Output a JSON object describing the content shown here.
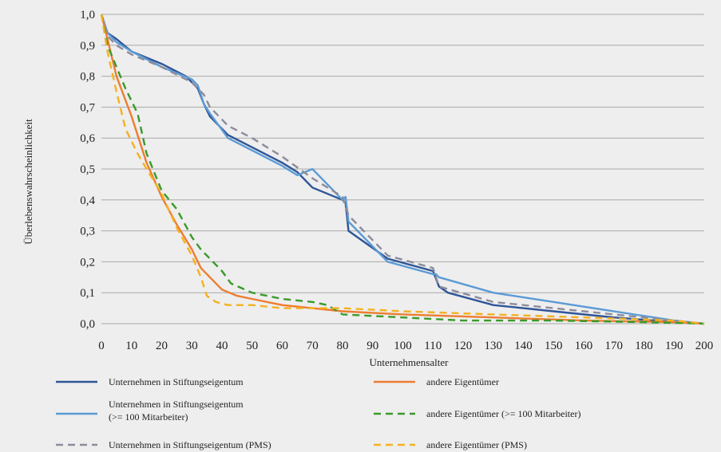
{
  "chart_data": {
    "type": "line",
    "title": "",
    "xlabel": "Unternehmensalter",
    "ylabel": "Überlebenswahrscheinlichkeit",
    "xlim": [
      0,
      200
    ],
    "ylim": [
      0,
      1
    ],
    "x_ticks": [
      0,
      10,
      20,
      30,
      40,
      50,
      60,
      70,
      80,
      90,
      100,
      110,
      120,
      130,
      140,
      150,
      160,
      170,
      180,
      190,
      200
    ],
    "x_tick_labels": [
      "0",
      "10",
      "20",
      "30",
      "40",
      "50",
      "60",
      "70",
      "80",
      "90",
      "100",
      "110",
      "120",
      "130",
      "140",
      "150",
      "160",
      "170",
      "180",
      "190",
      "200"
    ],
    "y_ticks": [
      0,
      0.1,
      0.2,
      0.3,
      0.4,
      0.5,
      0.6,
      0.7,
      0.8,
      0.9,
      1.0
    ],
    "y_tick_labels": [
      "0,0",
      "0,1",
      "0,2",
      "0,3",
      "0,4",
      "0,5",
      "0,6",
      "0,7",
      "0,8",
      "0,9",
      "1,0"
    ],
    "grid": "horizontal",
    "legend_position": "bottom",
    "series": [
      {
        "name": "Unternehmen in Stiftungseigentum",
        "color": "#2f5597",
        "dash": "solid",
        "x": [
          0,
          2,
          5,
          10,
          20,
          28,
          32,
          34,
          36,
          42,
          50,
          60,
          65,
          70,
          80,
          81,
          82,
          95,
          110,
          112,
          115,
          130,
          150,
          170,
          190,
          200
        ],
        "y": [
          1.0,
          0.94,
          0.92,
          0.88,
          0.84,
          0.8,
          0.76,
          0.71,
          0.67,
          0.61,
          0.57,
          0.52,
          0.49,
          0.44,
          0.4,
          0.39,
          0.3,
          0.21,
          0.17,
          0.12,
          0.1,
          0.06,
          0.04,
          0.02,
          0.005,
          0.0
        ]
      },
      {
        "name": "Unternehmen in Stiftungseigentum (>= 100 Mitarbeiter)",
        "color": "#5b9bd5",
        "dash": "solid",
        "x": [
          0,
          2,
          5,
          10,
          20,
          30,
          32,
          34,
          36,
          42,
          50,
          60,
          65,
          70,
          80,
          81,
          82,
          95,
          110,
          111,
          112,
          130,
          150,
          170,
          190,
          200
        ],
        "y": [
          1.0,
          0.94,
          0.91,
          0.88,
          0.83,
          0.79,
          0.77,
          0.71,
          0.68,
          0.6,
          0.56,
          0.51,
          0.48,
          0.5,
          0.4,
          0.41,
          0.33,
          0.2,
          0.16,
          0.16,
          0.15,
          0.1,
          0.07,
          0.04,
          0.01,
          0.0
        ]
      },
      {
        "name": "Unternehmen in Stiftungseigentum (PMS)",
        "color": "#8c8c9c",
        "dash": "dashed",
        "x": [
          0,
          2,
          5,
          10,
          20,
          30,
          34,
          36,
          42,
          50,
          60,
          70,
          80,
          82,
          95,
          110,
          112,
          130,
          150,
          170,
          190,
          200
        ],
        "y": [
          1.0,
          0.93,
          0.9,
          0.87,
          0.83,
          0.78,
          0.74,
          0.7,
          0.64,
          0.6,
          0.54,
          0.47,
          0.41,
          0.35,
          0.22,
          0.18,
          0.12,
          0.07,
          0.05,
          0.03,
          0.01,
          0.0
        ]
      },
      {
        "name": "andere Eigentümer",
        "color": "#ed7d31",
        "dash": "solid",
        "x": [
          0,
          2,
          5,
          10,
          15,
          20,
          25,
          30,
          33,
          36,
          40,
          45,
          50,
          60,
          70,
          80,
          100,
          130,
          160,
          190,
          200
        ],
        "y": [
          1.0,
          0.92,
          0.8,
          0.67,
          0.52,
          0.41,
          0.32,
          0.24,
          0.18,
          0.15,
          0.11,
          0.09,
          0.08,
          0.06,
          0.05,
          0.04,
          0.03,
          0.02,
          0.01,
          0.005,
          0.0
        ]
      },
      {
        "name": "andere Eigentümer (>= 100 Mitarbeiter)",
        "color": "#3a9a2a",
        "dash": "dashed",
        "x": [
          0,
          2,
          5,
          8,
          12,
          15,
          20,
          25,
          30,
          33,
          36,
          40,
          43,
          50,
          60,
          70,
          75,
          80,
          100,
          120,
          150,
          180,
          200
        ],
        "y": [
          1.0,
          0.9,
          0.83,
          0.76,
          0.68,
          0.55,
          0.43,
          0.37,
          0.28,
          0.24,
          0.21,
          0.17,
          0.13,
          0.1,
          0.08,
          0.07,
          0.06,
          0.03,
          0.02,
          0.01,
          0.01,
          0.005,
          0.0
        ]
      },
      {
        "name": "andere Eigentümer (PMS)",
        "color": "#f4b120",
        "dash": "dashed",
        "x": [
          0,
          2,
          5,
          8,
          12,
          15,
          20,
          25,
          30,
          33,
          35,
          38,
          42,
          50,
          60,
          80,
          100,
          130,
          160,
          190,
          200
        ],
        "y": [
          1.0,
          0.88,
          0.75,
          0.63,
          0.55,
          0.5,
          0.42,
          0.31,
          0.22,
          0.15,
          0.09,
          0.07,
          0.06,
          0.06,
          0.05,
          0.05,
          0.04,
          0.03,
          0.02,
          0.01,
          0.0
        ]
      }
    ]
  }
}
